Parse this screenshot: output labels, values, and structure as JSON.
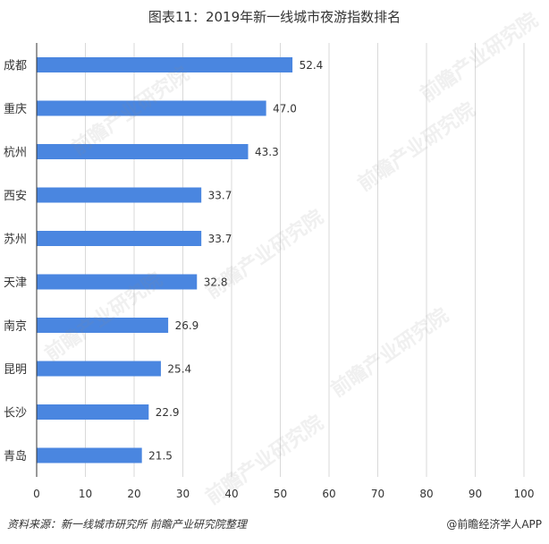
{
  "header": {
    "title": "图表11：2019年新一线城市夜游指数排名"
  },
  "footer": {
    "source": "资料来源：新一线城市研究所 前瞻产业研究院整理",
    "credit": "@前瞻经济学人APP"
  },
  "watermark": {
    "text": "前瞻产业研究院"
  },
  "colors": {
    "bar": "#4a86e0",
    "grid": "#d9d9d9",
    "axis": "#333333"
  },
  "chart_data": {
    "type": "bar",
    "orientation": "horizontal",
    "title": "图表11：2019年新一线城市夜游指数排名",
    "xlabel": "",
    "ylabel": "",
    "categories": [
      "成都",
      "重庆",
      "杭州",
      "西安",
      "苏州",
      "天津",
      "南京",
      "昆明",
      "长沙",
      "青岛"
    ],
    "values": [
      52.4,
      47.0,
      43.3,
      33.7,
      33.7,
      32.8,
      26.9,
      25.4,
      22.9,
      21.5
    ],
    "value_labels": [
      "52.4",
      "47.0",
      "43.3",
      "33.7",
      "33.7",
      "32.8",
      "26.9",
      "25.4",
      "22.9",
      "21.5"
    ],
    "xlim": [
      0,
      100
    ],
    "xticks": [
      0,
      10,
      20,
      30,
      40,
      50,
      60,
      70,
      80,
      90,
      100
    ],
    "grid": "vertical",
    "legend": "none"
  }
}
